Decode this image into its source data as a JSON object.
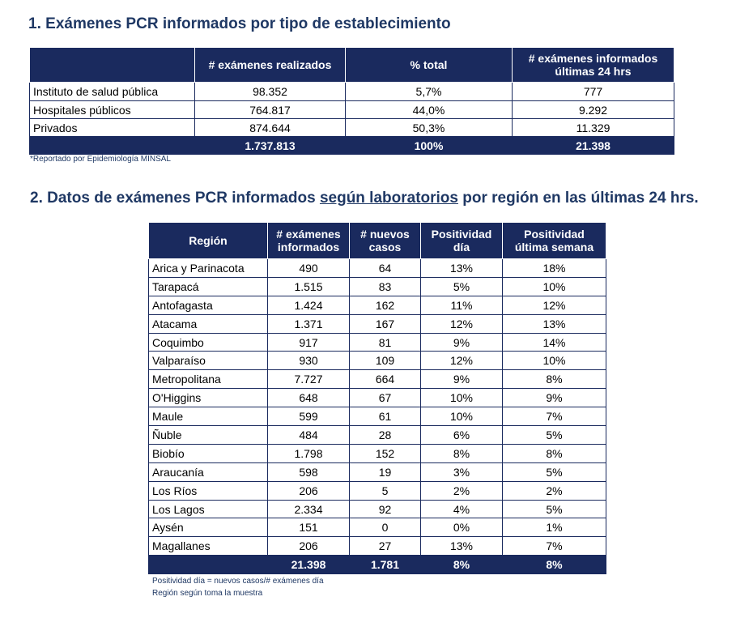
{
  "section1": {
    "number": "1.",
    "title": "Exámenes PCR informados por tipo de establecimiento",
    "headers": [
      "",
      "# exámenes realizados",
      "% total",
      "# exámenes informados últimas 24 hrs"
    ],
    "rows": [
      {
        "label": "Instituto de salud pública",
        "realizados": "98.352",
        "pct": "5,7%",
        "ultimas24": "777"
      },
      {
        "label": "Hospitales públicos",
        "realizados": "764.817",
        "pct": "44,0%",
        "ultimas24": "9.292"
      },
      {
        "label": "Privados",
        "realizados": "874.644",
        "pct": "50,3%",
        "ultimas24": "11.329"
      }
    ],
    "total": {
      "label": "",
      "realizados": "1.737.813",
      "pct": "100%",
      "ultimas24": "21.398"
    },
    "note": "*Reportado por Epidemiología MINSAL"
  },
  "section2": {
    "title_pre": "2.  Datos de exámenes PCR informados ",
    "title_ul": "según laboratorios",
    "title_post": " por región en las últimas 24 hrs.",
    "headers": [
      "Región",
      "# exámenes informados",
      "# nuevos casos",
      "Positividad día",
      "Positividad última semana"
    ],
    "rows": [
      {
        "region": "Arica y Parinacota",
        "examenes": "490",
        "casos": "64",
        "pos_dia": "13%",
        "pos_semana": "18%"
      },
      {
        "region": "Tarapacá",
        "examenes": "1.515",
        "casos": "83",
        "pos_dia": "5%",
        "pos_semana": "10%"
      },
      {
        "region": "Antofagasta",
        "examenes": "1.424",
        "casos": "162",
        "pos_dia": "11%",
        "pos_semana": "12%"
      },
      {
        "region": "Atacama",
        "examenes": "1.371",
        "casos": "167",
        "pos_dia": "12%",
        "pos_semana": "13%"
      },
      {
        "region": "Coquimbo",
        "examenes": "917",
        "casos": "81",
        "pos_dia": "9%",
        "pos_semana": "14%"
      },
      {
        "region": "Valparaíso",
        "examenes": "930",
        "casos": "109",
        "pos_dia": "12%",
        "pos_semana": "10%"
      },
      {
        "region": "Metropolitana",
        "examenes": "7.727",
        "casos": "664",
        "pos_dia": "9%",
        "pos_semana": "8%"
      },
      {
        "region": "O'Higgins",
        "examenes": "648",
        "casos": "67",
        "pos_dia": "10%",
        "pos_semana": "9%"
      },
      {
        "region": "Maule",
        "examenes": "599",
        "casos": "61",
        "pos_dia": "10%",
        "pos_semana": "7%"
      },
      {
        "region": "Ñuble",
        "examenes": "484",
        "casos": "28",
        "pos_dia": "6%",
        "pos_semana": "5%"
      },
      {
        "region": "Biobío",
        "examenes": "1.798",
        "casos": "152",
        "pos_dia": "8%",
        "pos_semana": "8%"
      },
      {
        "region": "Araucanía",
        "examenes": "598",
        "casos": "19",
        "pos_dia": "3%",
        "pos_semana": "5%"
      },
      {
        "region": "Los Ríos",
        "examenes": "206",
        "casos": "5",
        "pos_dia": "2%",
        "pos_semana": "2%"
      },
      {
        "region": "Los Lagos",
        "examenes": "2.334",
        "casos": "92",
        "pos_dia": "4%",
        "pos_semana": "5%"
      },
      {
        "region": "Aysén",
        "examenes": "151",
        "casos": "0",
        "pos_dia": "0%",
        "pos_semana": "1%"
      },
      {
        "region": "Magallanes",
        "examenes": "206",
        "casos": "27",
        "pos_dia": "13%",
        "pos_semana": "7%"
      }
    ],
    "total": {
      "region": "",
      "examenes": "21.398",
      "casos": "1.781",
      "pos_dia": "8%",
      "pos_semana": "8%"
    },
    "footnotes": [
      "Positividad día = nuevos casos/# exámenes día",
      "Región según toma la muestra"
    ]
  },
  "colors": {
    "header_bg": "#1a2a5e",
    "title": "#1f3864"
  }
}
